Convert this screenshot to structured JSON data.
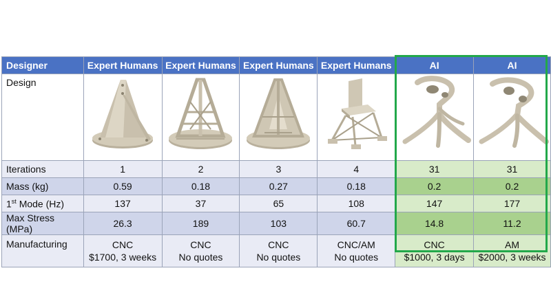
{
  "header": {
    "label": "Designer",
    "columns": [
      "Expert Humans",
      "Expert Humans",
      "Expert Humans",
      "Expert Humans",
      "AI",
      "AI"
    ]
  },
  "row_labels": {
    "design": "Design",
    "iterations": "Iterations",
    "mass": "Mass (kg)",
    "mode_prefix": "1",
    "mode_sup": "st",
    "mode_suffix": " Mode (Hz)",
    "stress": "Max Stress (MPa)",
    "manufacturing": "Manufacturing"
  },
  "iterations": [
    "1",
    "2",
    "3",
    "4",
    "31",
    "31"
  ],
  "mass": [
    "0.59",
    "0.18",
    "0.27",
    "0.18",
    "0.2",
    "0.2"
  ],
  "first_mode": [
    "137",
    "37",
    "65",
    "108",
    "147",
    "177"
  ],
  "max_stress": [
    "26.3",
    "189",
    "103",
    "60.7",
    "14.8",
    "11.2"
  ],
  "manufacturing": [
    {
      "method": "CNC",
      "detail": "$1700, 3 weeks"
    },
    {
      "method": "CNC",
      "detail": "No quotes"
    },
    {
      "method": "CNC",
      "detail": "No quotes"
    },
    {
      "method": "CNC/AM",
      "detail": "No quotes"
    },
    {
      "method": "CNC",
      "detail": "$1000, 3 days"
    },
    {
      "method": "AM",
      "detail": "$2000, 3 weeks"
    }
  ],
  "design_images": [
    "cone-bracket-solid-icon",
    "cone-bracket-lattice-icon",
    "cone-bracket-ribbed-icon",
    "chair-truss-bracket-icon",
    "organic-bracket-icon",
    "organic-bracket-icon"
  ],
  "colors": {
    "header": "#4a72c4",
    "row_light": "#e9ebf5",
    "row_dark": "#cfd5ea",
    "ai_light": "#d8ebc9",
    "ai_dark": "#a9d18e",
    "ai_border": "#22a84a",
    "part": "#c9c0ad"
  }
}
